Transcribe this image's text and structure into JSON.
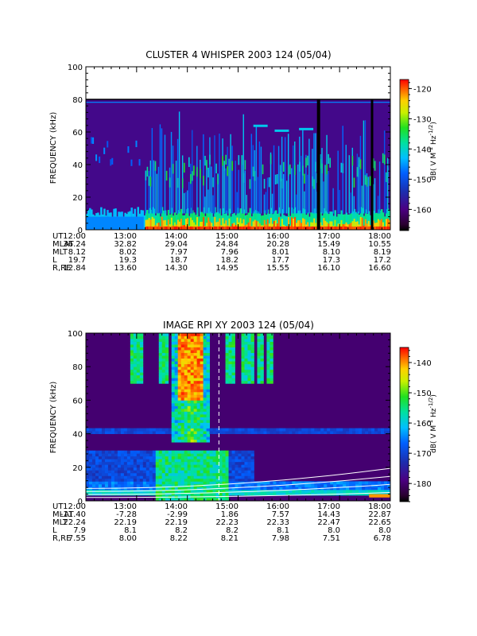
{
  "chart_data": [
    {
      "type": "heatmap",
      "title": "CLUSTER 4 WHISPER 2003 124 (05/04)",
      "ylabel": "FREQUENCY (kHz)",
      "ylim": [
        0,
        100
      ],
      "yticks": [
        "0",
        "20",
        "40",
        "60",
        "80",
        "100"
      ],
      "colorbar": {
        "label": "dB( V M⁻¹ Hz⁻¹ᐟ²)",
        "label_parts": {
          "pre": "dB( V M",
          "sup1": "-1",
          "mid": " Hz",
          "sup2": "-1/2",
          "post": ")"
        },
        "range": [
          -167,
          -117
        ],
        "ticks": [
          "-120",
          "-130",
          "-140",
          "-150",
          "-160"
        ],
        "tick_values": [
          -120,
          -130,
          -140,
          -150,
          -160
        ]
      },
      "data_top_khz": 80,
      "ephemeris": {
        "rows": [
          {
            "label": "UT",
            "values": [
              "12:00",
              "13:00",
              "14:00",
              "15:00",
              "16:00",
              "17:00",
              "18:00"
            ]
          },
          {
            "label": "MLAT",
            "values": [
              "36.24",
              "32.82",
              "29.04",
              "24.84",
              "20.28",
              "15.49",
              "10.55"
            ]
          },
          {
            "label": "MLT",
            "values": [
              "8.12",
              "8.02",
              "7.97",
              "7.96",
              "8.01",
              "8.10",
              "8.19"
            ]
          },
          {
            "label": "L",
            "values": [
              "19.7",
              "19.3",
              "18.7",
              "18.2",
              "17.7",
              "17.3",
              "17.2"
            ]
          },
          {
            "label": "R,RE",
            "values": [
              "12.84",
              "13.60",
              "14.30",
              "14.95",
              "15.55",
              "16.10",
              "16.60"
            ]
          }
        ]
      }
    },
    {
      "type": "heatmap",
      "title": "IMAGE RPI XY 2003 124 (05/04)",
      "ylabel": "FREQUENCY (kHz)",
      "ylim": [
        0,
        100
      ],
      "yticks": [
        "0",
        "20",
        "40",
        "60",
        "80",
        "100"
      ],
      "colorbar": {
        "label_parts": {
          "pre": "dB( V M",
          "sup1": "-1",
          "mid": " Hz",
          "sup2": "-1/2",
          "post": ")"
        },
        "range": [
          -186,
          -135
        ],
        "ticks": [
          "-140",
          "-150",
          "-160",
          "-170",
          "-180"
        ],
        "tick_values": [
          -140,
          -150,
          -160,
          -170,
          -180
        ]
      },
      "ephemeris": {
        "rows": [
          {
            "label": "UT",
            "values": [
              "12:00",
              "13:00",
              "14:00",
              "15:00",
              "16:00",
              "17:00",
              "18:00"
            ]
          },
          {
            "label": "MLAT",
            "values": [
              "-11.40",
              "-7.28",
              "-2.99",
              "1.86",
              "7.57",
              "14.43",
              "22.87"
            ]
          },
          {
            "label": "MLT",
            "values": [
              "22.24",
              "22.19",
              "22.19",
              "22.23",
              "22.33",
              "22.47",
              "22.65"
            ]
          },
          {
            "label": "L",
            "values": [
              "7.9",
              "8.1",
              "8.2",
              "8.2",
              "8.1",
              "8.0",
              "8.0"
            ]
          },
          {
            "label": "R,RE",
            "values": [
              "7.55",
              "8.00",
              "8.22",
              "8.21",
              "7.98",
              "7.51",
              "6.78"
            ]
          }
        ]
      }
    }
  ],
  "colors": {
    "background": "#ffffff",
    "axis": "#000000"
  }
}
